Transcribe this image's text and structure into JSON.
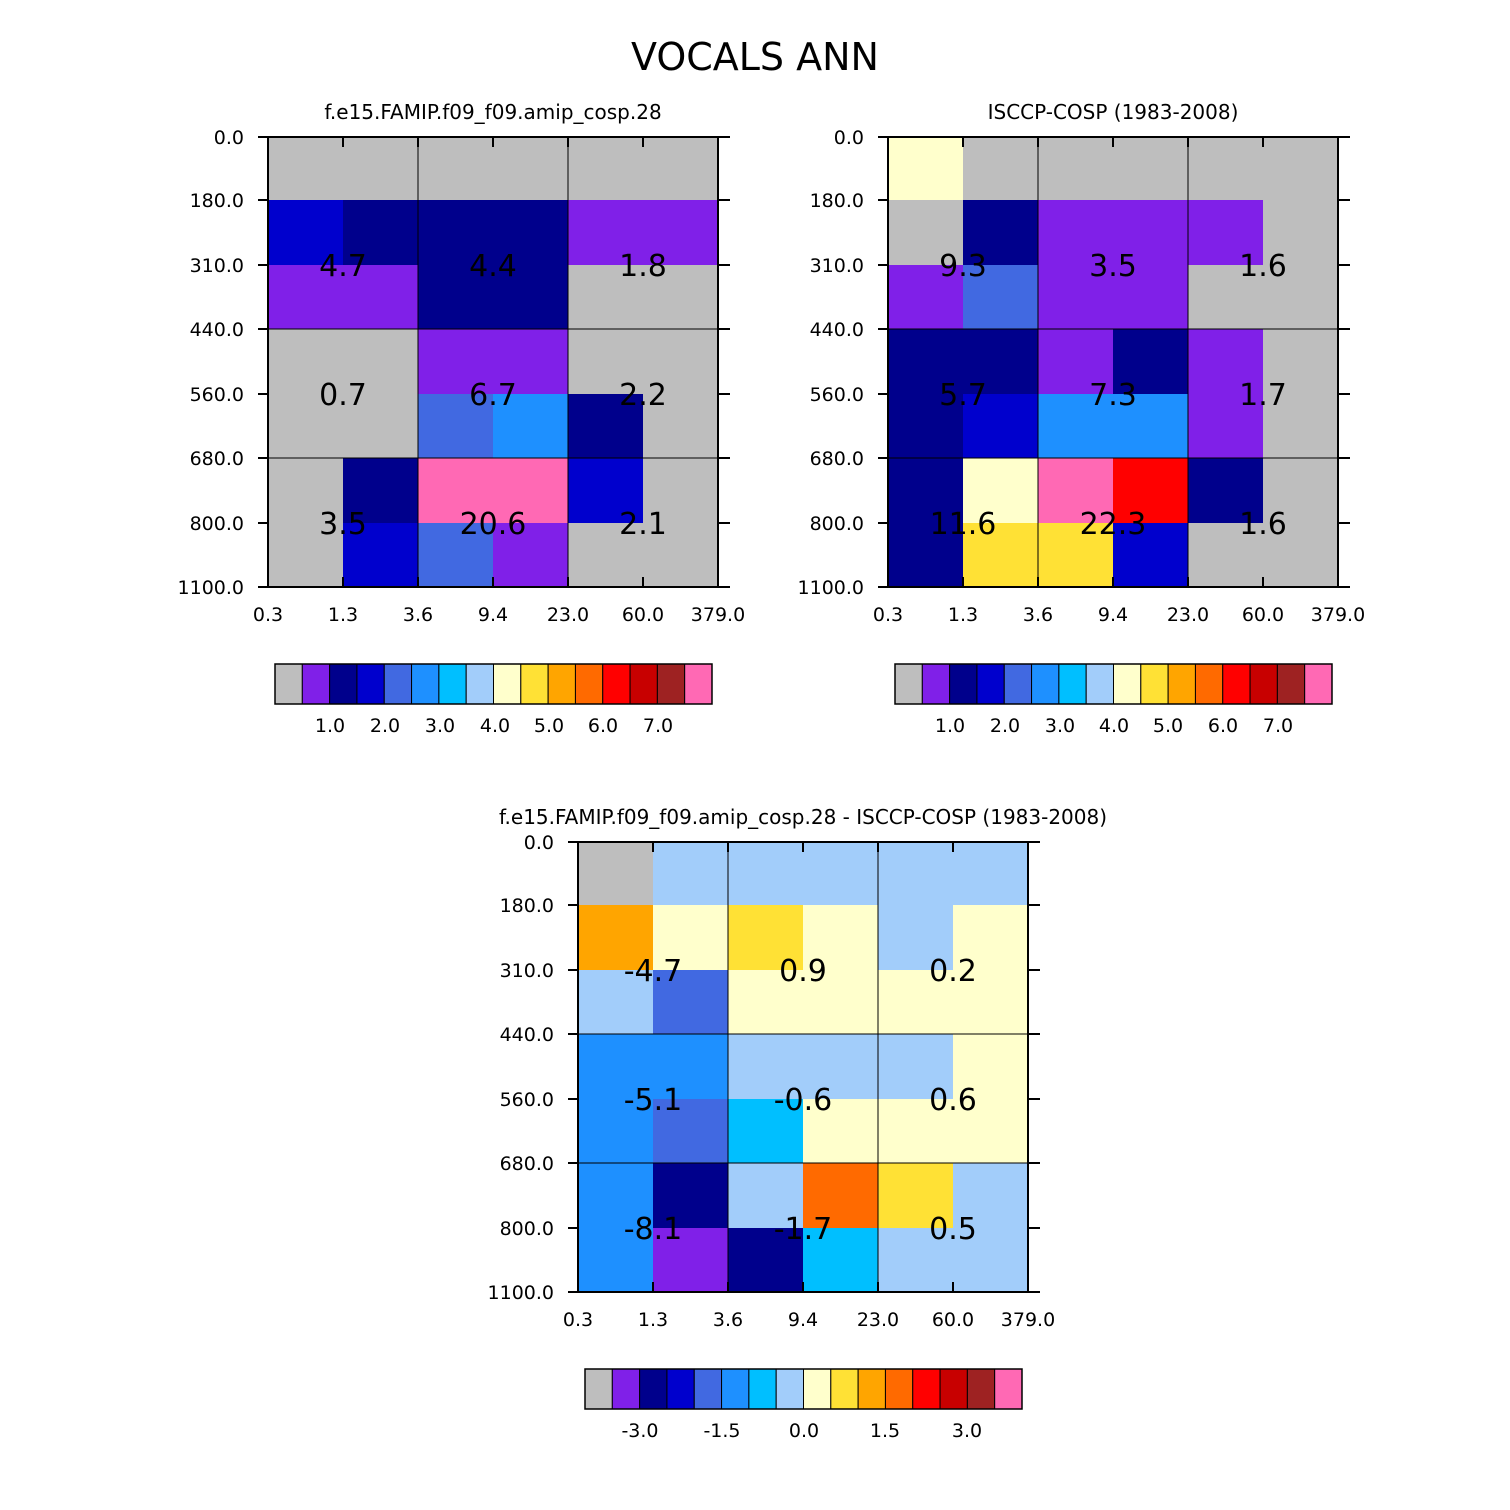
{
  "title": "VOCALS ANN",
  "palette": [
    "#bebebe",
    "#8020e8",
    "#00008c",
    "#0000cd",
    "#4169e1",
    "#1e90ff",
    "#00bfff",
    "#a2cdfa",
    "#ffffcc",
    "#ffe135",
    "#ffa500",
    "#ff6a00",
    "#ff0000",
    "#c80000",
    "#9e2222",
    "#ff69b4"
  ],
  "chart_data": [
    {
      "type": "heatmap",
      "title": "f.e15.FAMIP.f09_f09.amip_cosp.28",
      "x_tick_labels": [
        "0.3",
        "1.3",
        "3.6",
        "9.4",
        "23.0",
        "60.0",
        "379.0"
      ],
      "y_tick_labels": [
        "0.0",
        "180.0",
        "310.0",
        "440.0",
        "560.0",
        "680.0",
        "800.0",
        "1100.0"
      ],
      "cell_color_index": [
        [
          0,
          0,
          0,
          0,
          0,
          0
        ],
        [
          3,
          2,
          2,
          2,
          1,
          1
        ],
        [
          1,
          1,
          2,
          2,
          0,
          0
        ],
        [
          0,
          0,
          1,
          1,
          0,
          0
        ],
        [
          0,
          0,
          4,
          5,
          2,
          0
        ],
        [
          0,
          2,
          15,
          15,
          3,
          0
        ],
        [
          0,
          3,
          4,
          1,
          0,
          0
        ]
      ],
      "group_values": [
        [
          "4.7",
          "4.4",
          "1.8"
        ],
        [
          "0.7",
          "6.7",
          "2.2"
        ],
        [
          "3.5",
          "20.6",
          "2.1"
        ]
      ],
      "colorbar_labels": [
        "1.0",
        "2.0",
        "3.0",
        "4.0",
        "5.0",
        "6.0",
        "7.0"
      ]
    },
    {
      "type": "heatmap",
      "title": "ISCCP-COSP (1983-2008)",
      "x_tick_labels": [
        "0.3",
        "1.3",
        "3.6",
        "9.4",
        "23.0",
        "60.0",
        "379.0"
      ],
      "y_tick_labels": [
        "0.0",
        "180.0",
        "310.0",
        "440.0",
        "560.0",
        "680.0",
        "800.0",
        "1100.0"
      ],
      "cell_color_index": [
        [
          8,
          0,
          0,
          0,
          0,
          0
        ],
        [
          0,
          2,
          1,
          1,
          1,
          0
        ],
        [
          1,
          4,
          1,
          1,
          0,
          0
        ],
        [
          2,
          2,
          1,
          2,
          1,
          0
        ],
        [
          2,
          3,
          5,
          5,
          1,
          0
        ],
        [
          2,
          8,
          15,
          12,
          2,
          0
        ],
        [
          2,
          9,
          9,
          3,
          0,
          0
        ]
      ],
      "group_values": [
        [
          "9.3",
          "3.5",
          "1.6"
        ],
        [
          "5.7",
          "7.3",
          "1.7"
        ],
        [
          "11.6",
          "22.3",
          "1.6"
        ]
      ],
      "colorbar_labels": [
        "1.0",
        "2.0",
        "3.0",
        "4.0",
        "5.0",
        "6.0",
        "7.0"
      ]
    },
    {
      "type": "heatmap",
      "title": "f.e15.FAMIP.f09_f09.amip_cosp.28 - ISCCP-COSP (1983-2008)",
      "x_tick_labels": [
        "0.3",
        "1.3",
        "3.6",
        "9.4",
        "23.0",
        "60.0",
        "379.0"
      ],
      "y_tick_labels": [
        "0.0",
        "180.0",
        "310.0",
        "440.0",
        "560.0",
        "680.0",
        "800.0",
        "1100.0"
      ],
      "cell_color_index": [
        [
          0,
          7,
          7,
          7,
          7,
          7
        ],
        [
          10,
          8,
          9,
          8,
          7,
          8
        ],
        [
          7,
          4,
          8,
          8,
          8,
          8
        ],
        [
          5,
          5,
          7,
          7,
          7,
          8
        ],
        [
          5,
          4,
          6,
          8,
          8,
          8
        ],
        [
          5,
          2,
          7,
          11,
          9,
          7
        ],
        [
          5,
          1,
          2,
          6,
          7,
          7
        ]
      ],
      "group_values": [
        [
          "-4.7",
          "0.9",
          "0.2"
        ],
        [
          "-5.1",
          "-0.6",
          "0.6"
        ],
        [
          "-8.1",
          "-1.7",
          "0.5"
        ]
      ],
      "colorbar_labels": [
        "-3.0",
        "-1.5",
        "0.0",
        "1.5",
        "3.0"
      ]
    }
  ]
}
